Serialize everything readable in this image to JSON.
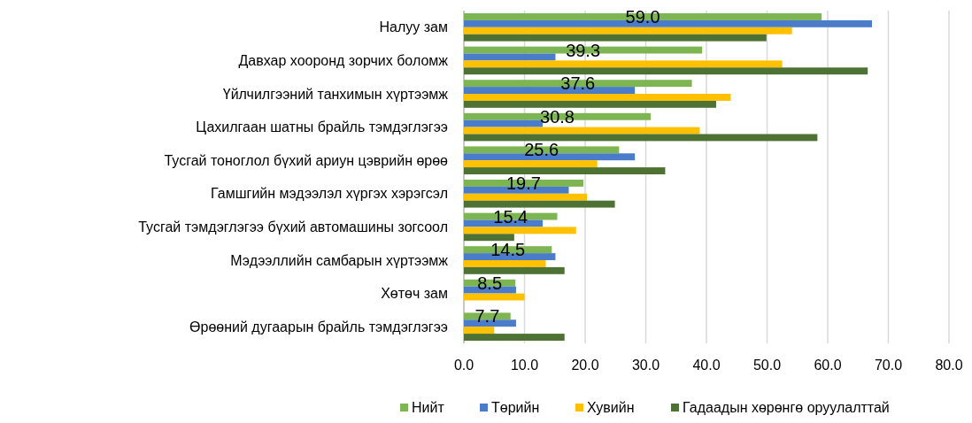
{
  "chart_data": {
    "type": "bar",
    "orientation": "horizontal",
    "categories": [
      "Налуу зам",
      "Давхар хооронд зорчих боломж",
      "Үйлчилгээний танхимын хүртээмж",
      "Цахилгаан шатны брайль тэмдэглэгээ",
      "Тусгай тоноглол бүхий ариун цэврийн өрөө",
      "Гамшгийн мэдээлэл хүргэх хэрэгсэл",
      "Тусгай тэмдэглэгээ бүхий автомашины зогсоол",
      "Мэдээллийн самбарын хүртээмж",
      "Хөтөч зам",
      "Өрөөний дугаарын брайль тэмдэглэгээ"
    ],
    "series": [
      {
        "name": "Нийт",
        "color": "#7cb552",
        "values": [
          59.0,
          39.3,
          37.6,
          30.8,
          25.6,
          19.7,
          15.4,
          14.5,
          8.5,
          7.7
        ],
        "value_labels": [
          "59.0",
          "39.3",
          "37.6",
          "30.8",
          "25.6",
          "19.7",
          "15.4",
          "14.5",
          "8.5",
          "7.7"
        ]
      },
      {
        "name": "Төрийн",
        "color": "#4a7cc9",
        "values": [
          67.3,
          15.1,
          28.2,
          13.0,
          28.2,
          17.3,
          13.0,
          15.1,
          8.6,
          8.6
        ]
      },
      {
        "name": "Хувийн",
        "color": "#ffc000",
        "values": [
          54.1,
          52.5,
          44.0,
          38.9,
          22.0,
          20.3,
          18.5,
          13.5,
          10.0,
          5.0
        ]
      },
      {
        "name": "Гадаадын хөрөнгө оруулалттай",
        "color": "#4e7233",
        "values": [
          49.9,
          66.6,
          41.6,
          58.3,
          33.2,
          24.9,
          8.3,
          16.6,
          null,
          16.6
        ]
      }
    ],
    "xlim": [
      0,
      80
    ],
    "xticks": [
      {
        "value": 0,
        "label": "0.0"
      },
      {
        "value": 10,
        "label": "10.0"
      },
      {
        "value": 20,
        "label": "20.0"
      },
      {
        "value": 30,
        "label": "30.0"
      },
      {
        "value": 40,
        "label": "40.0"
      },
      {
        "value": 50,
        "label": "50.0"
      },
      {
        "value": 60,
        "label": "60.0"
      },
      {
        "value": 70,
        "label": "70.0"
      },
      {
        "value": 80,
        "label": "80.0"
      }
    ],
    "grid": "x",
    "legend": "bottom"
  }
}
